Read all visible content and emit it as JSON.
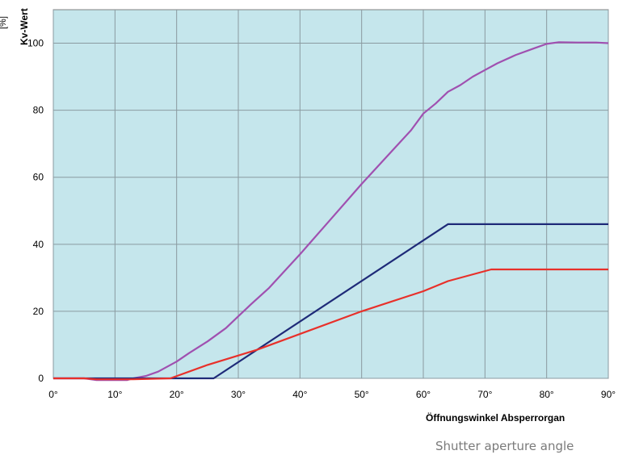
{
  "chart_data": {
    "type": "line",
    "title": "",
    "xlabel": "Öffnungswinkel Absperrorgan",
    "xlabel_translation": "Shutter aperture angle",
    "ylabel": "Kv-Wert",
    "yunit": "[%]",
    "xlim": [
      0,
      90
    ],
    "ylim": [
      0,
      110
    ],
    "x_ticks": [
      "0°",
      "10°",
      "20°",
      "30°",
      "40°",
      "50°",
      "60°",
      "70°",
      "80°",
      "90°"
    ],
    "y_ticks": [
      "0",
      "20",
      "40",
      "60",
      "80",
      "100"
    ],
    "grid": true,
    "legend": "none",
    "plot_background": "#c5e6ec",
    "series": [
      {
        "color": "#a050b0",
        "x": [
          0,
          5,
          7,
          10,
          12,
          13,
          15,
          17,
          20,
          22,
          25,
          28,
          30,
          32,
          35,
          40,
          45,
          50,
          55,
          58,
          60,
          62,
          64,
          66,
          68,
          70,
          72,
          75,
          78,
          80,
          82,
          85,
          88,
          90
        ],
        "y": [
          0,
          0,
          -0.5,
          -0.5,
          -0.5,
          0,
          0.7,
          2,
          5,
          7.5,
          11,
          15,
          18.5,
          22,
          27,
          37,
          47.5,
          58,
          68,
          74,
          79,
          82,
          85.5,
          87.5,
          90,
          92,
          94,
          96.5,
          98.5,
          99.8,
          100.3,
          100.2,
          100.2,
          100
        ]
      },
      {
        "color": "#1e2a78",
        "x": [
          0,
          26,
          64,
          90
        ],
        "y": [
          0,
          0,
          46,
          46
        ]
      },
      {
        "color": "#e8302a",
        "x": [
          0,
          5,
          7,
          13,
          19,
          25,
          33,
          50,
          60,
          64,
          71,
          90
        ],
        "y": [
          0,
          0,
          -0.3,
          -0.3,
          0,
          4,
          8.5,
          20,
          26,
          29,
          32.5,
          32.5
        ]
      }
    ]
  }
}
